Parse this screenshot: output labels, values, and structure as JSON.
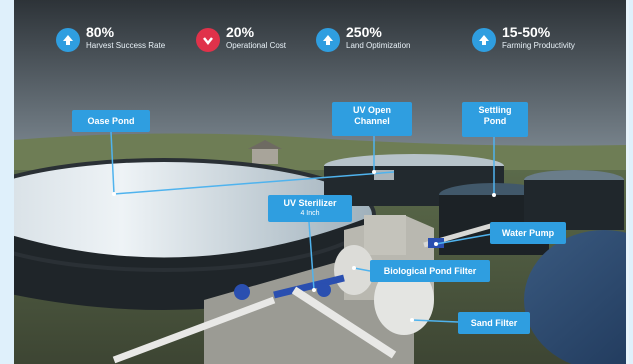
{
  "stats": [
    {
      "value": "80%",
      "label": "Harvest Success Rate",
      "direction": "up",
      "color": "#2f9ee0"
    },
    {
      "value": "20%",
      "label": "Operational Cost",
      "direction": "down",
      "color": "#e0324a"
    },
    {
      "value": "250%",
      "label": "Land Optimization",
      "direction": "up",
      "color": "#2f9ee0"
    },
    {
      "value": "15-50%",
      "label": "Farming Productivity",
      "direction": "up",
      "color": "#2f9ee0"
    }
  ],
  "labels": {
    "oase_pond": "Oase Pond",
    "uv_open_channel_line1": "UV Open",
    "uv_open_channel_line2": "Channel",
    "settling_pond_line1": "Settling",
    "settling_pond_line2": "Pond",
    "uv_sterilizer": "UV Sterilizer",
    "uv_sterilizer_size": "4 Inch",
    "water_pump": "Water Pump",
    "biological_pond_filter": "Biological Pond Filter",
    "sand_filter": "Sand Filter"
  },
  "colors": {
    "accent": "#2f9ee0",
    "down": "#e0324a"
  }
}
